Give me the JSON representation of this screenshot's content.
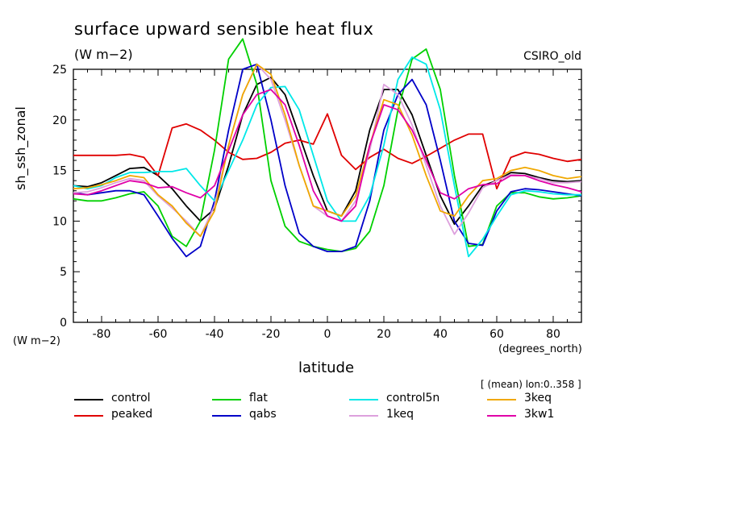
{
  "title": "surface upward sensible heat flux",
  "units_title": "(W m−2)",
  "model": "CSIRO_old",
  "y_axis_label": "sh_ssh_zonal",
  "y_units": "(W m−2)",
  "x_axis_label": "latitude",
  "x_units": "(degrees_north)",
  "mean_label": "[ (mean) lon:0..358 ]",
  "chart_data": {
    "type": "line",
    "title": "surface upward sensible heat flux",
    "xlabel": "latitude",
    "ylabel": "sh_ssh_zonal",
    "xlim": [
      -90,
      90
    ],
    "ylim": [
      0,
      25
    ],
    "xticks": [
      -80,
      -60,
      -40,
      -20,
      0,
      20,
      40,
      60,
      80
    ],
    "yticks": [
      0,
      5,
      10,
      15,
      20,
      25
    ],
    "x": [
      -90,
      -85,
      -80,
      -75,
      -70,
      -65,
      -60,
      -55,
      -50,
      -45,
      -40,
      -35,
      -30,
      -25,
      -20,
      -15,
      -10,
      -5,
      0,
      5,
      10,
      15,
      20,
      25,
      30,
      35,
      40,
      45,
      50,
      55,
      60,
      65,
      70,
      75,
      80,
      85,
      90
    ],
    "series": [
      {
        "name": "control",
        "color": "#000000",
        "values": [
          13.5,
          13.4,
          13.8,
          14.5,
          15.2,
          15.3,
          14.5,
          13.2,
          11.5,
          10.0,
          11.2,
          15.5,
          20.5,
          23.5,
          24.2,
          22.5,
          18.5,
          14.5,
          11.0,
          10.5,
          13.0,
          19.0,
          23.0,
          23.0,
          20.5,
          16.5,
          12.5,
          9.7,
          11.5,
          13.5,
          14.0,
          14.8,
          14.7,
          14.3,
          14.0,
          13.9,
          14.0
        ]
      },
      {
        "name": "peaked",
        "color": "#e00000",
        "values": [
          16.5,
          16.5,
          16.5,
          16.5,
          16.6,
          16.3,
          14.5,
          19.2,
          19.6,
          19.0,
          18.0,
          16.8,
          16.1,
          16.2,
          16.8,
          17.7,
          18.0,
          17.6,
          20.6,
          16.5,
          15.1,
          16.3,
          17.1,
          16.2,
          15.7,
          16.4,
          17.2,
          18.0,
          18.6,
          18.6,
          13.2,
          16.3,
          16.8,
          16.6,
          16.2,
          15.9,
          16.1
        ]
      },
      {
        "name": "flat",
        "color": "#00d000",
        "values": [
          12.2,
          12.0,
          12.0,
          12.3,
          12.7,
          12.9,
          11.5,
          8.5,
          7.5,
          10.0,
          17.0,
          26.0,
          28.0,
          23.5,
          14.0,
          9.5,
          8.0,
          7.5,
          7.2,
          7.0,
          7.3,
          9.0,
          13.5,
          21.0,
          26.0,
          27.0,
          23.0,
          14.5,
          7.5,
          7.7,
          11.5,
          12.8,
          12.8,
          12.4,
          12.2,
          12.3,
          12.5
        ]
      },
      {
        "name": "qabs",
        "color": "#0000c8",
        "values": [
          12.8,
          12.6,
          12.8,
          13.0,
          13.0,
          12.6,
          10.5,
          8.3,
          6.5,
          7.5,
          12.0,
          19.0,
          25.0,
          25.5,
          20.0,
          13.5,
          8.8,
          7.5,
          7.0,
          7.0,
          7.5,
          12.0,
          19.0,
          22.5,
          24.0,
          21.5,
          16.0,
          10.0,
          7.8,
          7.6,
          11.0,
          12.9,
          13.2,
          13.1,
          12.9,
          12.7,
          12.5
        ]
      },
      {
        "name": "control5n",
        "color": "#00e8e8",
        "values": [
          13.5,
          13.2,
          13.5,
          14.3,
          14.8,
          14.8,
          14.9,
          14.9,
          15.2,
          13.5,
          12.0,
          15.0,
          18.0,
          21.5,
          23.2,
          23.3,
          21.0,
          16.5,
          12.0,
          10.0,
          10.0,
          12.5,
          17.5,
          24.0,
          26.2,
          25.5,
          21.0,
          13.5,
          6.5,
          8.2,
          10.5,
          12.6,
          13.0,
          12.9,
          12.7,
          12.6,
          12.6
        ]
      },
      {
        "name": "1keq",
        "color": "#dda0dd",
        "values": [
          12.8,
          12.9,
          13.3,
          13.8,
          14.2,
          14.0,
          12.5,
          11.3,
          10.0,
          8.5,
          11.5,
          17.5,
          22.5,
          25.5,
          24.0,
          20.0,
          15.5,
          11.5,
          10.5,
          10.0,
          12.0,
          17.0,
          23.5,
          22.5,
          19.5,
          15.5,
          11.5,
          8.7,
          10.8,
          13.3,
          14.0,
          14.6,
          14.5,
          14.2,
          13.8,
          13.8,
          13.9
        ]
      },
      {
        "name": "3keq",
        "color": "#f0a800",
        "values": [
          13.2,
          13.3,
          13.6,
          14.0,
          14.5,
          14.3,
          12.6,
          11.5,
          9.8,
          8.5,
          11.0,
          17.5,
          22.5,
          25.5,
          24.5,
          20.5,
          15.5,
          11.5,
          11.0,
          10.5,
          12.5,
          17.5,
          22.0,
          21.5,
          18.5,
          14.5,
          11.0,
          10.5,
          12.5,
          14.0,
          14.2,
          15.0,
          15.3,
          15.0,
          14.5,
          14.2,
          14.4
        ]
      },
      {
        "name": "3kw1",
        "color": "#e000a8",
        "values": [
          12.7,
          12.6,
          13.0,
          13.5,
          14.0,
          13.8,
          13.3,
          13.4,
          12.8,
          12.3,
          13.5,
          17.0,
          20.5,
          22.5,
          23.0,
          21.5,
          17.5,
          13.0,
          10.5,
          10.0,
          11.5,
          17.5,
          21.5,
          21.0,
          19.0,
          16.0,
          12.8,
          12.2,
          13.2,
          13.6,
          13.7,
          14.5,
          14.5,
          14.0,
          13.6,
          13.3,
          12.9
        ]
      }
    ]
  }
}
